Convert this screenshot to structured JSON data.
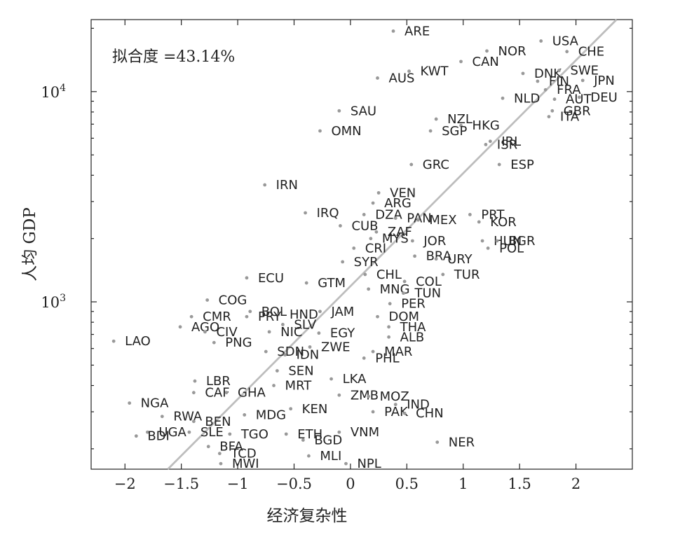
{
  "chart_data": {
    "type": "scatter",
    "xlabel": "经济复杂性",
    "ylabel": "人均 GDP",
    "annotation": "拟合度 =43.14%",
    "xlim": [
      -2.3,
      2.5
    ],
    "ylim": [
      160,
      22000
    ],
    "y_scale": "log",
    "x_ticks": [
      -2,
      -1.5,
      -1,
      -0.5,
      0,
      0.5,
      1,
      1.5,
      2
    ],
    "x_tick_labels": [
      "−2",
      "−1.5",
      "−1",
      "−0.5",
      "0",
      "0.5",
      "1",
      "1.5",
      "2"
    ],
    "y_ticks": [
      1000,
      10000
    ],
    "y_tick_labels": [
      "10^3",
      "10^4"
    ],
    "grid": false,
    "fit_line": {
      "x1": -1.62,
      "y1": 160,
      "x2": 2.36,
      "y2": 22000
    },
    "points": [
      {
        "label": "ARE",
        "x": 0.38,
        "y": 19400
      },
      {
        "label": "USA",
        "x": 1.69,
        "y": 17400
      },
      {
        "label": "CHE",
        "x": 1.92,
        "y": 15500
      },
      {
        "label": "NOR",
        "x": 1.21,
        "y": 15600
      },
      {
        "label": "CAN",
        "x": 0.98,
        "y": 13900
      },
      {
        "label": "DNK",
        "x": 1.53,
        "y": 12200
      },
      {
        "label": "SWE",
        "x": 1.85,
        "y": 12600
      },
      {
        "label": "KWT",
        "x": 0.52,
        "y": 12500
      },
      {
        "label": "AUS",
        "x": 0.24,
        "y": 11600
      },
      {
        "label": "FIN",
        "x": 1.66,
        "y": 11200
      },
      {
        "label": "JPN",
        "x": 2.06,
        "y": 11300
      },
      {
        "label": "FRA",
        "x": 1.73,
        "y": 10200
      },
      {
        "label": "NLD",
        "x": 1.35,
        "y": 9300
      },
      {
        "label": "AUT",
        "x": 1.81,
        "y": 9200
      },
      {
        "label": "DEU",
        "x": 2.03,
        "y": 9400
      },
      {
        "label": "GBR",
        "x": 1.79,
        "y": 8100
      },
      {
        "label": "ITA",
        "x": 1.76,
        "y": 7600
      },
      {
        "label": "SAU",
        "x": -0.1,
        "y": 8100
      },
      {
        "label": "NZL",
        "x": 0.76,
        "y": 7400
      },
      {
        "label": "HKG",
        "x": 0.98,
        "y": 6900
      },
      {
        "label": "SGP",
        "x": 0.71,
        "y": 6500
      },
      {
        "label": "OMN",
        "x": -0.27,
        "y": 6500
      },
      {
        "label": "IRL",
        "x": 1.24,
        "y": 5800
      },
      {
        "label": "ISR",
        "x": 1.2,
        "y": 5600
      },
      {
        "label": "ESP",
        "x": 1.32,
        "y": 4500
      },
      {
        "label": "GRC",
        "x": 0.54,
        "y": 4500
      },
      {
        "label": "IRN",
        "x": -0.76,
        "y": 3600
      },
      {
        "label": "VEN",
        "x": 0.25,
        "y": 3300
      },
      {
        "label": "ARG",
        "x": 0.2,
        "y": 2950
      },
      {
        "label": "IRQ",
        "x": -0.4,
        "y": 2650
      },
      {
        "label": "PRT",
        "x": 1.06,
        "y": 2600
      },
      {
        "label": "DZA",
        "x": 0.12,
        "y": 2600
      },
      {
        "label": "PAN",
        "x": 0.4,
        "y": 2500
      },
      {
        "label": "MEX",
        "x": 0.6,
        "y": 2450
      },
      {
        "label": "KOR",
        "x": 1.14,
        "y": 2400
      },
      {
        "label": "CUB",
        "x": -0.09,
        "y": 2300
      },
      {
        "label": "ZAF",
        "x": 0.23,
        "y": 2150
      },
      {
        "label": "JOR",
        "x": 0.55,
        "y": 1950
      },
      {
        "label": "HUN",
        "x": 1.17,
        "y": 1950
      },
      {
        "label": "BGR",
        "x": 1.3,
        "y": 1950
      },
      {
        "label": "MYS",
        "x": 0.18,
        "y": 2000
      },
      {
        "label": "CRI",
        "x": 0.03,
        "y": 1800
      },
      {
        "label": "POL",
        "x": 1.22,
        "y": 1800
      },
      {
        "label": "BRA",
        "x": 0.57,
        "y": 1650
      },
      {
        "label": "URY",
        "x": 0.76,
        "y": 1600
      },
      {
        "label": "SYR",
        "x": -0.07,
        "y": 1550
      },
      {
        "label": "CHL",
        "x": 0.13,
        "y": 1350
      },
      {
        "label": "TUR",
        "x": 0.82,
        "y": 1350
      },
      {
        "label": "ECU",
        "x": -0.92,
        "y": 1300
      },
      {
        "label": "COL",
        "x": 0.48,
        "y": 1250
      },
      {
        "label": "GTM",
        "x": -0.39,
        "y": 1230
      },
      {
        "label": "MNG",
        "x": 0.16,
        "y": 1150
      },
      {
        "label": "TUN",
        "x": 0.47,
        "y": 1100
      },
      {
        "label": "COG",
        "x": -1.27,
        "y": 1020
      },
      {
        "label": "PER",
        "x": 0.35,
        "y": 980
      },
      {
        "label": "BOL",
        "x": -0.89,
        "y": 900
      },
      {
        "label": "JAM",
        "x": -0.27,
        "y": 900
      },
      {
        "label": "HND",
        "x": -0.64,
        "y": 870
      },
      {
        "label": "DOM",
        "x": 0.24,
        "y": 850
      },
      {
        "label": "CMR",
        "x": -1.41,
        "y": 850
      },
      {
        "label": "PRY",
        "x": -0.92,
        "y": 850
      },
      {
        "label": "SLV",
        "x": -0.6,
        "y": 780
      },
      {
        "label": "AGO",
        "x": -1.51,
        "y": 760
      },
      {
        "label": "THA",
        "x": 0.34,
        "y": 760
      },
      {
        "label": "NIC",
        "x": -0.72,
        "y": 720
      },
      {
        "label": "EGY",
        "x": -0.28,
        "y": 710
      },
      {
        "label": "CIV",
        "x": -1.29,
        "y": 720
      },
      {
        "label": "LAO",
        "x": -2.1,
        "y": 650
      },
      {
        "label": "ALB",
        "x": 0.34,
        "y": 680
      },
      {
        "label": "PNG",
        "x": -1.21,
        "y": 640
      },
      {
        "label": "ZWE",
        "x": -0.36,
        "y": 610
      },
      {
        "label": "SDN",
        "x": -0.75,
        "y": 580
      },
      {
        "label": "IDN",
        "x": -0.58,
        "y": 560
      },
      {
        "label": "MAR",
        "x": 0.2,
        "y": 580
      },
      {
        "label": "PHL",
        "x": 0.12,
        "y": 540
      },
      {
        "label": "SEN",
        "x": -0.65,
        "y": 470
      },
      {
        "label": "LBR",
        "x": -1.38,
        "y": 420
      },
      {
        "label": "LKA",
        "x": -0.17,
        "y": 430
      },
      {
        "label": "MRT",
        "x": -0.68,
        "y": 400
      },
      {
        "label": "CAF",
        "x": -1.39,
        "y": 370
      },
      {
        "label": "GHA",
        "x": -1.1,
        "y": 370
      },
      {
        "label": "ZMB",
        "x": -0.1,
        "y": 360
      },
      {
        "label": "MOZ",
        "x": 0.16,
        "y": 355
      },
      {
        "label": "NGA",
        "x": -1.96,
        "y": 330
      },
      {
        "label": "IND",
        "x": 0.4,
        "y": 325
      },
      {
        "label": "KEN",
        "x": -0.53,
        "y": 310
      },
      {
        "label": "MDG",
        "x": -0.94,
        "y": 290
      },
      {
        "label": "PAK",
        "x": 0.2,
        "y": 300
      },
      {
        "label": "CHN",
        "x": 0.48,
        "y": 295
      },
      {
        "label": "RWA",
        "x": -1.67,
        "y": 285
      },
      {
        "label": "BEN",
        "x": -1.39,
        "y": 270
      },
      {
        "label": "UGA",
        "x": -1.8,
        "y": 240
      },
      {
        "label": "SLE",
        "x": -1.43,
        "y": 240
      },
      {
        "label": "BDI",
        "x": -1.9,
        "y": 230
      },
      {
        "label": "TGO",
        "x": -1.07,
        "y": 235
      },
      {
        "label": "ETH",
        "x": -0.57,
        "y": 235
      },
      {
        "label": "VNM",
        "x": -0.1,
        "y": 240
      },
      {
        "label": "BGD",
        "x": -0.42,
        "y": 220
      },
      {
        "label": "NER",
        "x": 0.77,
        "y": 215
      },
      {
        "label": "BFA",
        "x": -1.26,
        "y": 205
      },
      {
        "label": "TCD",
        "x": -1.16,
        "y": 190
      },
      {
        "label": "MLI",
        "x": -0.37,
        "y": 185
      },
      {
        "label": "MWI",
        "x": -1.15,
        "y": 170
      },
      {
        "label": "NPL",
        "x": -0.04,
        "y": 170
      }
    ]
  }
}
